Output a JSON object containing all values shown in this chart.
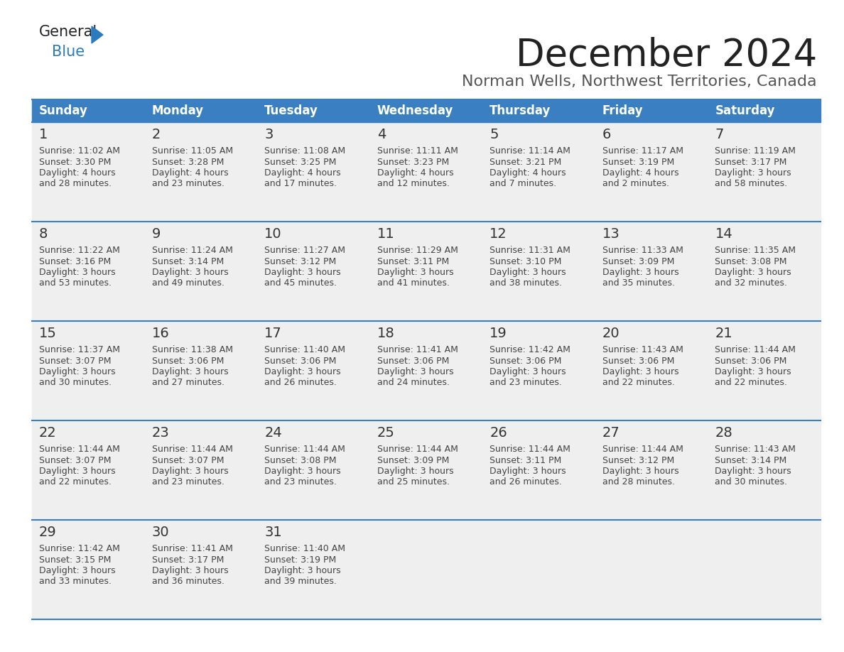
{
  "title": "December 2024",
  "subtitle": "Norman Wells, Northwest Territories, Canada",
  "header_color": "#3a7fc1",
  "header_text_color": "#ffffff",
  "day_names": [
    "Sunday",
    "Monday",
    "Tuesday",
    "Wednesday",
    "Thursday",
    "Friday",
    "Saturday"
  ],
  "background_color": "#ffffff",
  "cell_bg_color": "#efefef",
  "separator_color": "#3a7fc1",
  "day_number_color": "#333333",
  "text_color": "#444444",
  "logo_general_color": "#333333",
  "logo_blue_color": "#2b7bbf",
  "title_fontsize": 38,
  "subtitle_fontsize": 16,
  "header_fontsize": 12,
  "day_num_fontsize": 14,
  "cell_fontsize": 9,
  "weeks": [
    [
      {
        "day": 1,
        "sunrise": "11:02 AM",
        "sunset": "3:30 PM",
        "daylight": "4 hours and 28 minutes"
      },
      {
        "day": 2,
        "sunrise": "11:05 AM",
        "sunset": "3:28 PM",
        "daylight": "4 hours and 23 minutes"
      },
      {
        "day": 3,
        "sunrise": "11:08 AM",
        "sunset": "3:25 PM",
        "daylight": "4 hours and 17 minutes"
      },
      {
        "day": 4,
        "sunrise": "11:11 AM",
        "sunset": "3:23 PM",
        "daylight": "4 hours and 12 minutes"
      },
      {
        "day": 5,
        "sunrise": "11:14 AM",
        "sunset": "3:21 PM",
        "daylight": "4 hours and 7 minutes"
      },
      {
        "day": 6,
        "sunrise": "11:17 AM",
        "sunset": "3:19 PM",
        "daylight": "4 hours and 2 minutes"
      },
      {
        "day": 7,
        "sunrise": "11:19 AM",
        "sunset": "3:17 PM",
        "daylight": "3 hours and 58 minutes"
      }
    ],
    [
      {
        "day": 8,
        "sunrise": "11:22 AM",
        "sunset": "3:16 PM",
        "daylight": "3 hours and 53 minutes"
      },
      {
        "day": 9,
        "sunrise": "11:24 AM",
        "sunset": "3:14 PM",
        "daylight": "3 hours and 49 minutes"
      },
      {
        "day": 10,
        "sunrise": "11:27 AM",
        "sunset": "3:12 PM",
        "daylight": "3 hours and 45 minutes"
      },
      {
        "day": 11,
        "sunrise": "11:29 AM",
        "sunset": "3:11 PM",
        "daylight": "3 hours and 41 minutes"
      },
      {
        "day": 12,
        "sunrise": "11:31 AM",
        "sunset": "3:10 PM",
        "daylight": "3 hours and 38 minutes"
      },
      {
        "day": 13,
        "sunrise": "11:33 AM",
        "sunset": "3:09 PM",
        "daylight": "3 hours and 35 minutes"
      },
      {
        "day": 14,
        "sunrise": "11:35 AM",
        "sunset": "3:08 PM",
        "daylight": "3 hours and 32 minutes"
      }
    ],
    [
      {
        "day": 15,
        "sunrise": "11:37 AM",
        "sunset": "3:07 PM",
        "daylight": "3 hours and 30 minutes"
      },
      {
        "day": 16,
        "sunrise": "11:38 AM",
        "sunset": "3:06 PM",
        "daylight": "3 hours and 27 minutes"
      },
      {
        "day": 17,
        "sunrise": "11:40 AM",
        "sunset": "3:06 PM",
        "daylight": "3 hours and 26 minutes"
      },
      {
        "day": 18,
        "sunrise": "11:41 AM",
        "sunset": "3:06 PM",
        "daylight": "3 hours and 24 minutes"
      },
      {
        "day": 19,
        "sunrise": "11:42 AM",
        "sunset": "3:06 PM",
        "daylight": "3 hours and 23 minutes"
      },
      {
        "day": 20,
        "sunrise": "11:43 AM",
        "sunset": "3:06 PM",
        "daylight": "3 hours and 22 minutes"
      },
      {
        "day": 21,
        "sunrise": "11:44 AM",
        "sunset": "3:06 PM",
        "daylight": "3 hours and 22 minutes"
      }
    ],
    [
      {
        "day": 22,
        "sunrise": "11:44 AM",
        "sunset": "3:07 PM",
        "daylight": "3 hours and 22 minutes"
      },
      {
        "day": 23,
        "sunrise": "11:44 AM",
        "sunset": "3:07 PM",
        "daylight": "3 hours and 23 minutes"
      },
      {
        "day": 24,
        "sunrise": "11:44 AM",
        "sunset": "3:08 PM",
        "daylight": "3 hours and 23 minutes"
      },
      {
        "day": 25,
        "sunrise": "11:44 AM",
        "sunset": "3:09 PM",
        "daylight": "3 hours and 25 minutes"
      },
      {
        "day": 26,
        "sunrise": "11:44 AM",
        "sunset": "3:11 PM",
        "daylight": "3 hours and 26 minutes"
      },
      {
        "day": 27,
        "sunrise": "11:44 AM",
        "sunset": "3:12 PM",
        "daylight": "3 hours and 28 minutes"
      },
      {
        "day": 28,
        "sunrise": "11:43 AM",
        "sunset": "3:14 PM",
        "daylight": "3 hours and 30 minutes"
      }
    ],
    [
      {
        "day": 29,
        "sunrise": "11:42 AM",
        "sunset": "3:15 PM",
        "daylight": "3 hours and 33 minutes"
      },
      {
        "day": 30,
        "sunrise": "11:41 AM",
        "sunset": "3:17 PM",
        "daylight": "3 hours and 36 minutes"
      },
      {
        "day": 31,
        "sunrise": "11:40 AM",
        "sunset": "3:19 PM",
        "daylight": "3 hours and 39 minutes"
      },
      null,
      null,
      null,
      null
    ]
  ]
}
